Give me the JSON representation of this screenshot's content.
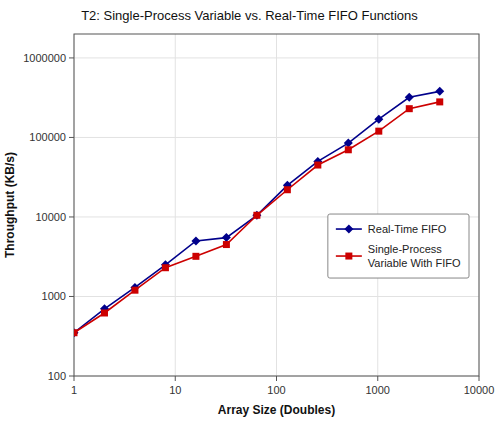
{
  "chart_data": {
    "type": "line",
    "title": "T2: Single-Process Variable vs. Real-Time FIFO Functions",
    "xlabel": "Array Size (Doubles)",
    "ylabel": "Throughput (KB/s)",
    "x": [
      1,
      2,
      4,
      8,
      16,
      32,
      64,
      128,
      256,
      512,
      1024,
      2048,
      4096
    ],
    "series": [
      {
        "name": "Real-Time FIFO",
        "color": "#00008B",
        "marker": "diamond",
        "values": [
          350,
          700,
          1300,
          2500,
          5000,
          5500,
          10500,
          25000,
          50000,
          85000,
          170000,
          320000,
          380000
        ]
      },
      {
        "name": "Single-Process\nVariable With FIFO",
        "color": "#CC0000",
        "marker": "square",
        "values": [
          350,
          620,
          1200,
          2300,
          3200,
          4500,
          10500,
          22000,
          45000,
          70000,
          120000,
          230000,
          280000
        ]
      }
    ],
    "xlim": [
      1,
      10000
    ],
    "ylim": [
      100,
      2000000
    ],
    "xticks": [
      1,
      10,
      100,
      1000,
      10000
    ],
    "yticks": [
      100,
      1000,
      10000,
      100000,
      1000000
    ],
    "log": true,
    "grid": true,
    "legend": "right"
  }
}
